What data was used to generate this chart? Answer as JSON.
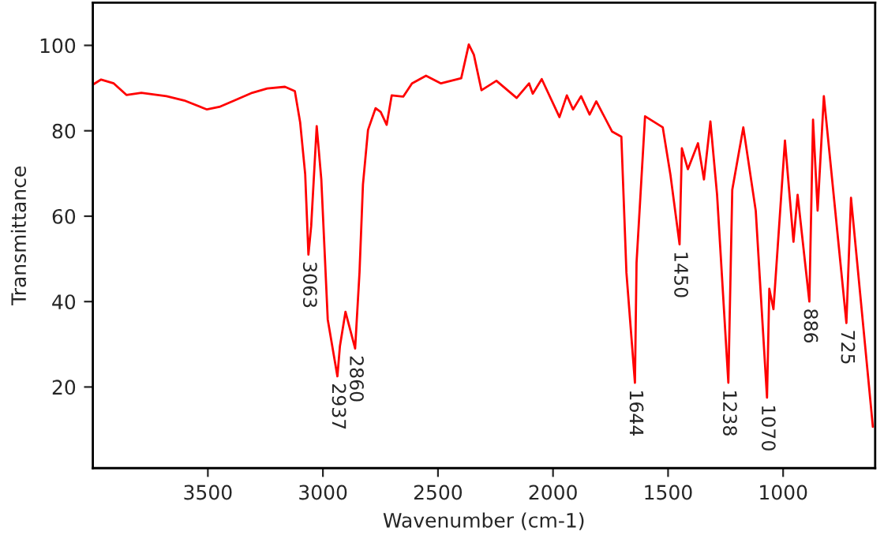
{
  "chart_data": {
    "type": "line",
    "xlabel": "Wavenumber (cm-1)",
    "ylabel": "Transmittance",
    "xlim": [
      4000,
      600
    ],
    "ylim": [
      1,
      110
    ],
    "xticks": [
      3500,
      3000,
      2500,
      2000,
      1500,
      1000
    ],
    "yticks": [
      20,
      40,
      60,
      80,
      100
    ],
    "grid": false,
    "legend": false,
    "marker": "none",
    "line_style": "solid",
    "series": [
      {
        "color": "#ff0000",
        "x": [
          3997,
          3964,
          3909,
          3854,
          3789,
          3680,
          3603,
          3504,
          3450,
          3384,
          3307,
          3242,
          3165,
          3122,
          3099,
          3077,
          3063,
          3051,
          3027,
          3007,
          2979,
          2937,
          2926,
          2902,
          2860,
          2841,
          2826,
          2804,
          2771,
          2749,
          2723,
          2701,
          2651,
          2613,
          2552,
          2487,
          2399,
          2366,
          2344,
          2311,
          2246,
          2158,
          2104,
          2088,
          2049,
          1972,
          1940,
          1913,
          1878,
          1841,
          1812,
          1743,
          1703,
          1681,
          1644,
          1637,
          1600,
          1523,
          1490,
          1450,
          1440,
          1414,
          1370,
          1344,
          1316,
          1287,
          1238,
          1221,
          1173,
          1119,
          1070,
          1060,
          1042,
          992,
          955,
          937,
          886,
          870,
          850,
          823,
          725,
          705,
          610
        ],
        "values": [
          90.9,
          92,
          91.1,
          88.4,
          88.9,
          88.1,
          87.1,
          85,
          85.6,
          87.1,
          88.9,
          89.9,
          90.3,
          89.3,
          82,
          69.8,
          51,
          57.7,
          81.1,
          68.6,
          35.8,
          22.5,
          29.6,
          37.6,
          29,
          46.8,
          67.4,
          80.2,
          85.3,
          84.4,
          81.4,
          88.3,
          88,
          91.1,
          92.9,
          91.1,
          92.3,
          100.2,
          97.8,
          89.5,
          91.7,
          87.7,
          91.1,
          88.7,
          92.1,
          83.2,
          88.3,
          85,
          88.1,
          83.8,
          86.9,
          79.8,
          78.6,
          46.8,
          21,
          49.1,
          83.4,
          80.8,
          69.8,
          53.4,
          75.9,
          71,
          77.1,
          68.6,
          82.2,
          65,
          21,
          66.2,
          80.8,
          61.3,
          17.5,
          43,
          38.2,
          77.7,
          54,
          65,
          40,
          82.6,
          61.3,
          88.1,
          35,
          64.3,
          10.7
        ]
      }
    ],
    "annotations": [
      {
        "text": "3063",
        "x": 3063,
        "y": 51
      },
      {
        "text": "2937",
        "x": 2937,
        "y": 22.5
      },
      {
        "text": "2860",
        "x": 2860,
        "y": 29
      },
      {
        "text": "1644",
        "x": 1644,
        "y": 21
      },
      {
        "text": "1450",
        "x": 1450,
        "y": 53.4
      },
      {
        "text": "1238",
        "x": 1238,
        "y": 21
      },
      {
        "text": "1070",
        "x": 1070,
        "y": 17.5
      },
      {
        "text": "886",
        "x": 886,
        "y": 40
      },
      {
        "text": "725",
        "x": 725,
        "y": 35
      }
    ]
  }
}
